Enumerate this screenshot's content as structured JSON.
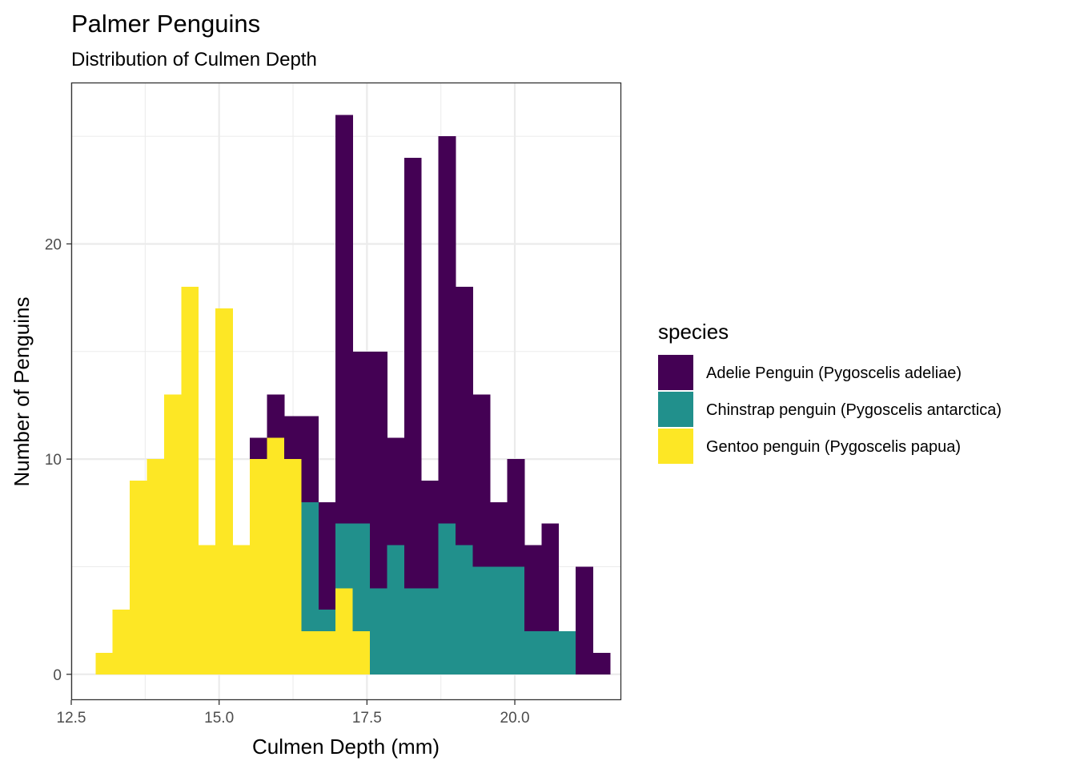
{
  "chart_data": {
    "type": "bar",
    "subtype": "stacked-histogram",
    "title": "Palmer Penguins",
    "subtitle": "Distribution of Culmen Depth",
    "xlabel": "Culmen Depth (mm)",
    "ylabel": "Number of Penguins",
    "xlim": [
      12.5,
      21.8
    ],
    "ylim": [
      -1.2,
      27.5
    ],
    "xticks": [
      12.5,
      15.0,
      17.5,
      20.0
    ],
    "xtick_labels": [
      "12.5",
      "15.0",
      "17.5",
      "20.0"
    ],
    "yticks": [
      0,
      10,
      20
    ],
    "ytick_labels": [
      "0",
      "10",
      "20"
    ],
    "grid": true,
    "legend_position": "right",
    "legend_title": "species",
    "bin_edges": [
      12.91,
      13.2,
      13.49,
      13.78,
      14.07,
      14.36,
      14.65,
      14.94,
      15.23,
      15.52,
      15.81,
      16.1,
      16.39,
      16.68,
      16.97,
      17.26,
      17.55,
      17.84,
      18.13,
      18.42,
      18.71,
      19.0,
      19.29,
      19.58,
      19.87,
      20.16,
      20.45,
      20.74,
      21.03,
      21.32,
      21.61
    ],
    "series": [
      {
        "name": "Adelie Penguin (Pygoscelis adeliae)",
        "color": "#440154",
        "values": [
          0,
          0,
          0,
          0,
          0,
          0,
          0,
          0,
          0,
          1,
          2,
          2,
          4,
          5,
          19,
          8,
          11,
          5,
          20,
          5,
          18,
          12,
          8,
          3,
          5,
          4,
          5,
          0,
          5,
          1
        ]
      },
      {
        "name": "Chinstrap penguin (Pygoscelis antarctica)",
        "color": "#21908C",
        "values": [
          0,
          0,
          0,
          0,
          0,
          0,
          0,
          0,
          0,
          0,
          0,
          0,
          6,
          1,
          3,
          5,
          4,
          6,
          4,
          4,
          7,
          6,
          5,
          5,
          5,
          2,
          2,
          2,
          0,
          0
        ]
      },
      {
        "name": "Gentoo penguin (Pygoscelis papua)",
        "color": "#FDE725",
        "values": [
          1,
          3,
          9,
          10,
          13,
          18,
          6,
          17,
          6,
          10,
          11,
          10,
          2,
          2,
          4,
          2,
          0,
          0,
          0,
          0,
          0,
          0,
          0,
          0,
          0,
          0,
          0,
          0,
          0,
          0
        ]
      }
    ]
  }
}
